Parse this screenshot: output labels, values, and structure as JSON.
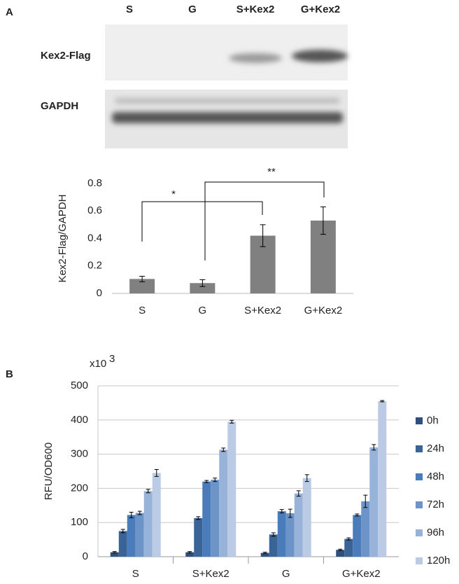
{
  "panels": [
    "A",
    "B"
  ],
  "blot": {
    "lanes": [
      "S",
      "G",
      "S+Kex2",
      "G+Kex2"
    ],
    "rows": [
      "Kex2-Flag",
      "GAPDH"
    ]
  },
  "chart_data": [
    {
      "type": "bar",
      "y_label": "Kex2-Flag/GAPDH",
      "categories": [
        "S",
        "G",
        "S+Kex2",
        "G+Kex2"
      ],
      "values": [
        0.105,
        0.075,
        0.42,
        0.53
      ],
      "errors": [
        0.02,
        0.025,
        0.08,
        0.1
      ],
      "color": "#808080",
      "ylim": [
        0,
        0.8
      ],
      "yticks": [
        0,
        0.2,
        0.4,
        0.6,
        0.8
      ],
      "grid": false,
      "annotations": [
        "*",
        "**"
      ]
    },
    {
      "type": "grouped-bar",
      "y_label": "RFU/OD600",
      "unit": "x10",
      "unit_exponent": "3",
      "categories": [
        "S",
        "S+Kex2",
        "G",
        "G+Kex2"
      ],
      "series": [
        {
          "name": "0h",
          "color": "#2f4f7f",
          "values": [
            13,
            13,
            11,
            20
          ],
          "errors": [
            2,
            2,
            2,
            2
          ]
        },
        {
          "name": "24h",
          "color": "#3a6396",
          "values": [
            75,
            113,
            65,
            52
          ],
          "errors": [
            5,
            4,
            5,
            3
          ]
        },
        {
          "name": "48h",
          "color": "#4a7bbb",
          "values": [
            122,
            220,
            133,
            122
          ],
          "errors": [
            8,
            3,
            5,
            3
          ]
        },
        {
          "name": "72h",
          "color": "#6d94c8",
          "values": [
            128,
            225,
            127,
            162
          ],
          "errors": [
            5,
            5,
            12,
            18
          ]
        },
        {
          "name": "96h",
          "color": "#98b3d9",
          "values": [
            192,
            313,
            185,
            320
          ],
          "errors": [
            5,
            5,
            8,
            8
          ]
        },
        {
          "name": "120h",
          "color": "#bccbe5",
          "values": [
            245,
            395,
            230,
            455
          ],
          "errors": [
            10,
            4,
            10,
            2
          ]
        }
      ],
      "ylim": [
        0,
        500
      ],
      "yticks": [
        0,
        100,
        200,
        300,
        400,
        500
      ],
      "grid": true,
      "legend": "right"
    }
  ]
}
